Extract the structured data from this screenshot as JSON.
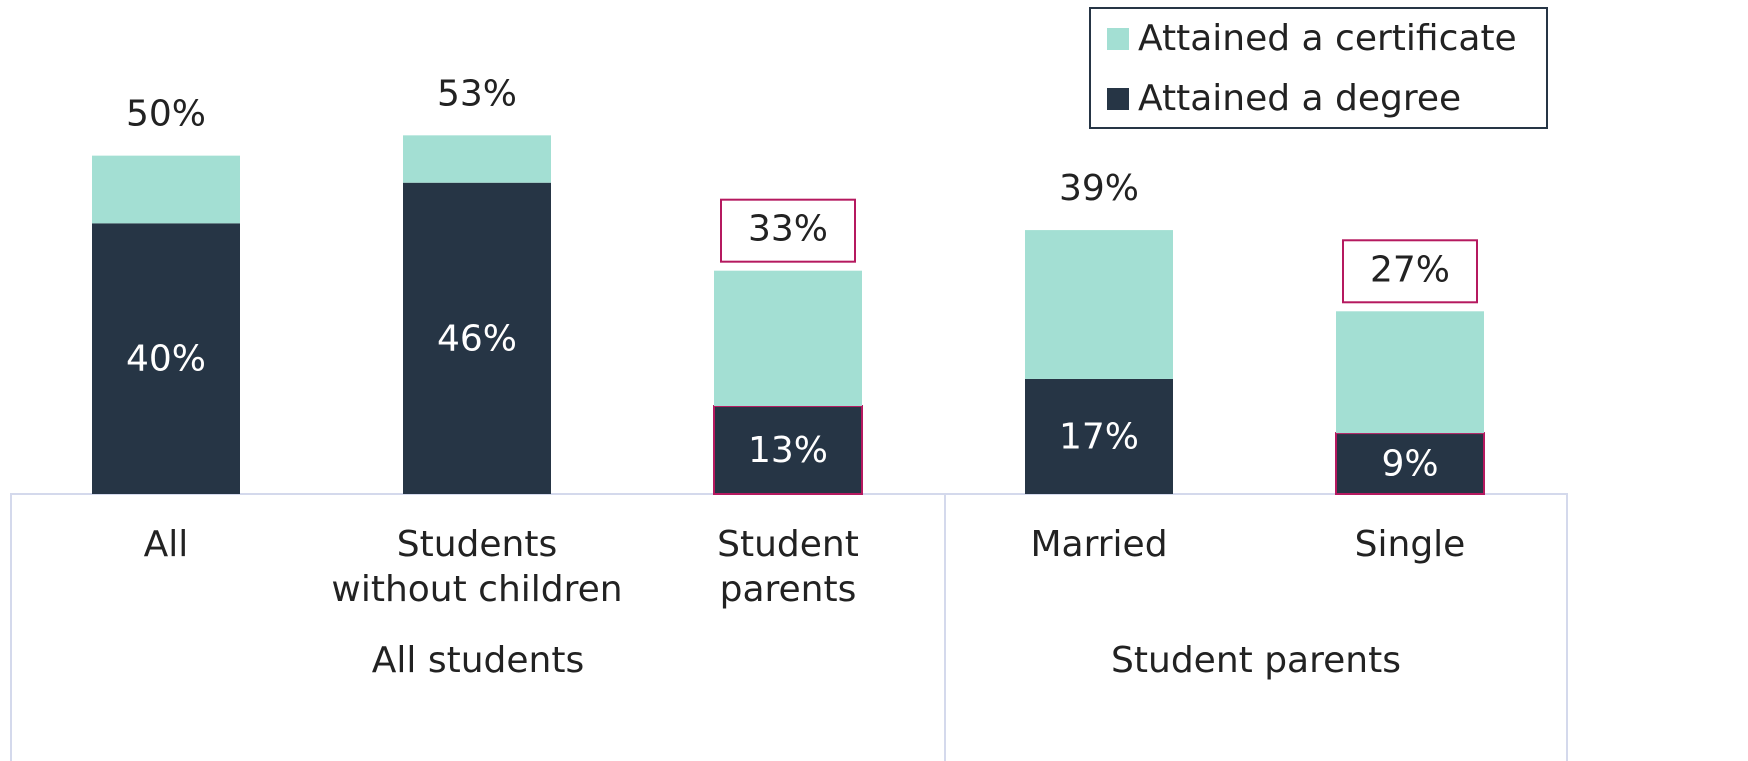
{
  "chart_data": {
    "type": "stacked_bar",
    "categories": [
      [
        "All"
      ],
      [
        "Students",
        "without children"
      ],
      [
        "Student",
        "parents"
      ],
      [
        "Married"
      ],
      [
        "Single"
      ]
    ],
    "groups": [
      {
        "label": "All students",
        "members": [
          0,
          1,
          2
        ]
      },
      {
        "label": "Student parents",
        "members": [
          3,
          4
        ]
      }
    ],
    "series": [
      {
        "name": "Attained a degree",
        "color": "#263545",
        "values": [
          40,
          46,
          13,
          17,
          9
        ],
        "value_labels": [
          "40%",
          "46%",
          "13%",
          "17%",
          "9%"
        ]
      },
      {
        "name": "Attained a certificate",
        "color": "#a3dfd3",
        "values": [
          10,
          7,
          20,
          22,
          18
        ]
      }
    ],
    "totals": [
      50,
      53,
      33,
      39,
      27
    ],
    "total_labels": [
      "50%",
      "53%",
      "33%",
      "39%",
      "27%"
    ],
    "highlighted": [
      false,
      false,
      true,
      false,
      true
    ],
    "highlight_color": "#b5195f",
    "ylim": [
      0,
      73
    ],
    "legend": "top-right"
  }
}
